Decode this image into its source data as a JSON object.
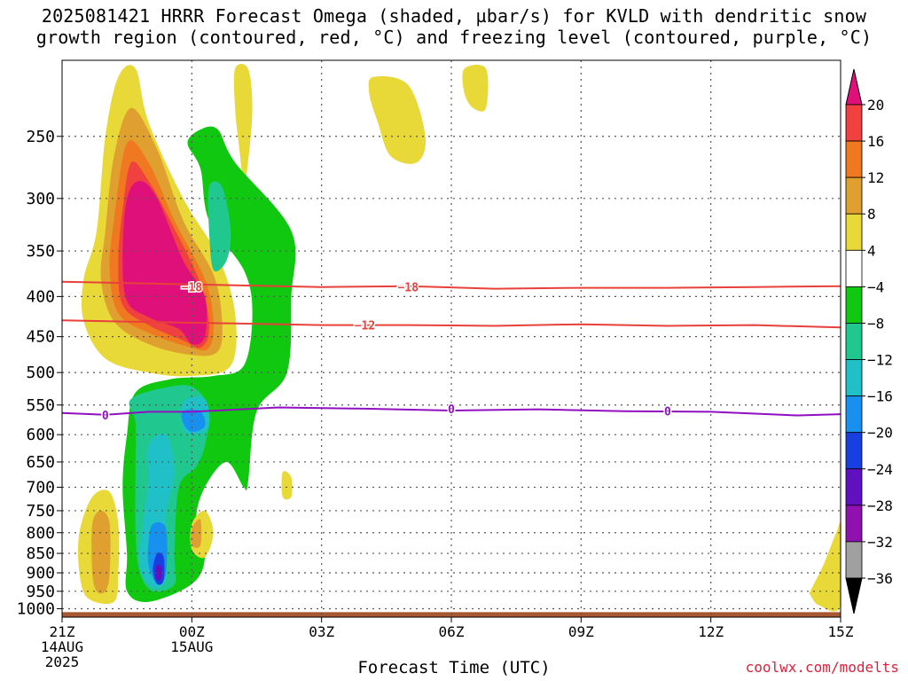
{
  "title_line1": "2025081421 HRRR Forecast Omega (shaded, µbar/s) for KVLD with dendritic snow",
  "title_line2": "growth region (contoured, red, °C) and freezing level (contoured, purple, °C)",
  "credit": "coolwx.com/modelts",
  "chart_data": {
    "type": "heatmap",
    "title": "2025081421 HRRR Forecast Omega (shaded, µbar/s) for KVLD with dendritic snow growth region (contoured, red, °C) and freezing level (contoured, purple, °C)",
    "xlabel": "Forecast Time (UTC)",
    "ylabel": "",
    "x_unit": "hours from 21Z 14AUG 2025",
    "xlim": [
      0,
      18
    ],
    "y_unit": "mb",
    "ylim": [
      1025,
      200
    ],
    "y_scale": "log",
    "grid": true,
    "x_ticks": [
      {
        "value": 0,
        "label": "21Z",
        "sub1": "14AUG",
        "sub2": "2025"
      },
      {
        "value": 3,
        "label": "00Z",
        "sub1": "15AUG",
        "sub2": ""
      },
      {
        "value": 6,
        "label": "03Z",
        "sub1": "",
        "sub2": ""
      },
      {
        "value": 9,
        "label": "06Z",
        "sub1": "",
        "sub2": ""
      },
      {
        "value": 12,
        "label": "09Z",
        "sub1": "",
        "sub2": ""
      },
      {
        "value": 15,
        "label": "12Z",
        "sub1": "",
        "sub2": ""
      },
      {
        "value": 18,
        "label": "15Z",
        "sub1": "",
        "sub2": ""
      }
    ],
    "y_ticks": [
      250,
      300,
      350,
      400,
      450,
      500,
      550,
      600,
      650,
      700,
      750,
      800,
      850,
      900,
      950,
      1000
    ],
    "colorbar": {
      "labels": [
        "20",
        "16",
        "12",
        "8",
        "4",
        "−4",
        "−8",
        "−12",
        "−16",
        "−20",
        "−24",
        "−28",
        "−32",
        "−36"
      ],
      "bins": [
        {
          "range": "> 20",
          "color": "#e0107a"
        },
        {
          "range": "16 to 20",
          "color": "#f04040"
        },
        {
          "range": "12 to 16",
          "color": "#f07820"
        },
        {
          "range": "8 to 12",
          "color": "#e0a030"
        },
        {
          "range": "4 to 8",
          "color": "#e8d838"
        },
        {
          "range": "-4 to 4",
          "color": "#ffffff"
        },
        {
          "range": "-8 to -4",
          "color": "#10c810"
        },
        {
          "range": "-12 to -8",
          "color": "#20c890"
        },
        {
          "range": "-16 to -12",
          "color": "#20c0c8"
        },
        {
          "range": "-20 to -16",
          "color": "#1890f0"
        },
        {
          "range": "-24 to -20",
          "color": "#1840e0"
        },
        {
          "range": "-28 to -24",
          "color": "#6010c0"
        },
        {
          "range": "-32 to -28",
          "color": "#9010b0"
        },
        {
          "range": "-36 to -32",
          "color": "#a0a0a0"
        },
        {
          "range": "< -36",
          "color": "#000000"
        }
      ]
    },
    "contours": [
      {
        "label": "-18",
        "color": "#e8403a",
        "points": [
          [
            0,
            383
          ],
          [
            2,
            385
          ],
          [
            4,
            387
          ],
          [
            6,
            389
          ],
          [
            8,
            388
          ],
          [
            10,
            391
          ],
          [
            12,
            390
          ],
          [
            14,
            390
          ],
          [
            16,
            389
          ],
          [
            18,
            388
          ]
        ],
        "label_at": [
          [
            3,
            389
          ],
          [
            8,
            389
          ]
        ]
      },
      {
        "label": "-12",
        "color": "#e8403a",
        "points": [
          [
            0,
            429
          ],
          [
            2,
            431
          ],
          [
            4,
            433
          ],
          [
            6,
            435
          ],
          [
            8,
            435
          ],
          [
            10,
            436
          ],
          [
            12,
            434
          ],
          [
            14,
            436
          ],
          [
            16,
            435
          ],
          [
            18,
            438
          ]
        ],
        "label_at": [
          [
            7,
            435
          ]
        ]
      },
      {
        "label": "0",
        "color": "#9010c0",
        "points": [
          [
            0,
            563
          ],
          [
            1,
            566
          ],
          [
            2,
            561
          ],
          [
            3,
            561
          ],
          [
            5,
            554
          ],
          [
            7,
            556
          ],
          [
            9,
            559
          ],
          [
            11,
            557
          ],
          [
            13,
            560
          ],
          [
            15,
            561
          ],
          [
            17,
            567
          ],
          [
            18,
            565
          ]
        ],
        "label_at": [
          [
            1,
            566
          ],
          [
            9,
            556
          ],
          [
            14,
            560
          ]
        ]
      }
    ],
    "terrain": {
      "color": "#a85830",
      "top_mb": 1010,
      "bottom_mb": 1025
    },
    "omega_regions": [
      {
        "bin": "4 to 8",
        "points": [
          [
            0.8,
            330
          ],
          [
            1.0,
            250
          ],
          [
            1.3,
            210
          ],
          [
            1.7,
            205
          ],
          [
            2.0,
            240
          ],
          [
            2.8,
            300
          ],
          [
            3.6,
            355
          ],
          [
            4.0,
            420
          ],
          [
            3.9,
            490
          ],
          [
            3.0,
            505
          ],
          [
            2.0,
            500
          ],
          [
            1.0,
            480
          ],
          [
            0.5,
            430
          ],
          [
            0.5,
            380
          ]
        ]
      },
      {
        "bin": "8 to 12",
        "points": [
          [
            1.0,
            330
          ],
          [
            1.2,
            265
          ],
          [
            1.6,
            230
          ],
          [
            2.2,
            260
          ],
          [
            2.8,
            320
          ],
          [
            3.5,
            375
          ],
          [
            3.7,
            430
          ],
          [
            3.6,
            470
          ],
          [
            3.0,
            475
          ],
          [
            2.0,
            460
          ],
          [
            1.2,
            430
          ],
          [
            0.9,
            380
          ]
        ]
      },
      {
        "bin": "12 to 16",
        "points": [
          [
            1.2,
            320
          ],
          [
            1.5,
            255
          ],
          [
            2.0,
            270
          ],
          [
            2.6,
            320
          ],
          [
            3.3,
            380
          ],
          [
            3.5,
            430
          ],
          [
            3.4,
            465
          ],
          [
            3.0,
            465
          ],
          [
            2.0,
            445
          ],
          [
            1.3,
            420
          ],
          [
            1.1,
            370
          ]
        ]
      },
      {
        "bin": "16 to 20",
        "points": [
          [
            1.4,
            310
          ],
          [
            1.6,
            270
          ],
          [
            2.0,
            285
          ],
          [
            2.5,
            320
          ],
          [
            3.2,
            385
          ],
          [
            3.4,
            440
          ],
          [
            3.2,
            465
          ],
          [
            2.8,
            455
          ],
          [
            2.0,
            435
          ],
          [
            1.4,
            410
          ],
          [
            1.3,
            360
          ]
        ]
      },
      {
        "bin": "> 20",
        "points": [
          [
            1.5,
            300
          ],
          [
            1.8,
            285
          ],
          [
            2.2,
            300
          ],
          [
            2.8,
            360
          ],
          [
            3.3,
            400
          ],
          [
            3.3,
            450
          ],
          [
            3.0,
            460
          ],
          [
            2.7,
            440
          ],
          [
            2.0,
            425
          ],
          [
            1.5,
            405
          ],
          [
            1.4,
            355
          ]
        ]
      },
      {
        "bin": "4 to 8",
        "points": [
          [
            4.0,
            205
          ],
          [
            4.3,
            205
          ],
          [
            4.4,
            230
          ],
          [
            4.3,
            270
          ],
          [
            4.2,
            285
          ],
          [
            4.1,
            260
          ],
          [
            4.0,
            230
          ]
        ]
      },
      {
        "bin": "4 to 8",
        "points": [
          [
            7.2,
            210
          ],
          [
            8.0,
            215
          ],
          [
            8.4,
            250
          ],
          [
            8.2,
            270
          ],
          [
            7.6,
            265
          ],
          [
            7.3,
            240
          ],
          [
            7.1,
            220
          ]
        ]
      },
      {
        "bin": "4 to 8",
        "points": [
          [
            9.3,
            205
          ],
          [
            9.8,
            205
          ],
          [
            9.8,
            230
          ],
          [
            9.5,
            230
          ],
          [
            9.3,
            220
          ]
        ]
      },
      {
        "bin": "-8 to -4",
        "points": [
          [
            2.9,
            255
          ],
          [
            3.2,
            275
          ],
          [
            3.4,
            320
          ],
          [
            4.2,
            370
          ],
          [
            4.4,
            420
          ],
          [
            4.2,
            490
          ],
          [
            3.5,
            505
          ],
          [
            2.5,
            510
          ],
          [
            1.7,
            530
          ],
          [
            1.5,
            600
          ],
          [
            1.4,
            700
          ],
          [
            1.5,
            850
          ],
          [
            1.5,
            950
          ],
          [
            2.0,
            980
          ],
          [
            3.0,
            930
          ],
          [
            3.3,
            860
          ],
          [
            3.1,
            770
          ],
          [
            3.3,
            700
          ],
          [
            3.8,
            650
          ],
          [
            4.2,
            700
          ],
          [
            4.3,
            690
          ],
          [
            4.5,
            560
          ],
          [
            5.2,
            500
          ],
          [
            5.3,
            400
          ],
          [
            5.3,
            330
          ],
          [
            4.0,
            270
          ],
          [
            3.6,
            245
          ],
          [
            3.2,
            245
          ]
        ]
      },
      {
        "bin": "-12 to -8",
        "points": [
          [
            1.6,
            540
          ],
          [
            2.6,
            520
          ],
          [
            3.1,
            525
          ],
          [
            3.4,
            560
          ],
          [
            3.3,
            620
          ],
          [
            3.1,
            660
          ],
          [
            2.7,
            700
          ],
          [
            2.6,
            850
          ],
          [
            2.6,
            930
          ],
          [
            2.1,
            950
          ],
          [
            1.8,
            900
          ],
          [
            1.7,
            800
          ],
          [
            1.7,
            650
          ],
          [
            1.7,
            580
          ]
        ]
      },
      {
        "bin": "-12 to -8",
        "points": [
          [
            3.4,
            290
          ],
          [
            3.7,
            290
          ],
          [
            3.9,
            330
          ],
          [
            3.8,
            360
          ],
          [
            3.5,
            370
          ],
          [
            3.4,
            330
          ]
        ]
      },
      {
        "bin": "-16 to -12",
        "points": [
          [
            2.0,
            620
          ],
          [
            2.4,
            600
          ],
          [
            2.6,
            670
          ],
          [
            2.4,
            760
          ],
          [
            2.4,
            850
          ],
          [
            2.4,
            920
          ],
          [
            2.1,
            940
          ],
          [
            1.8,
            880
          ],
          [
            1.9,
            760
          ],
          [
            2.0,
            690
          ]
        ]
      },
      {
        "bin": "-16 to -12",
        "points": [
          [
            2.8,
            545
          ],
          [
            3.3,
            540
          ],
          [
            3.4,
            585
          ],
          [
            3.1,
            600
          ],
          [
            2.8,
            590
          ]
        ]
      },
      {
        "bin": "-20 to -16",
        "points": [
          [
            2.8,
            560
          ],
          [
            3.2,
            560
          ],
          [
            3.3,
            585
          ],
          [
            3.0,
            595
          ],
          [
            2.8,
            580
          ]
        ]
      },
      {
        "bin": "-20 to -16",
        "points": [
          [
            2.1,
            780
          ],
          [
            2.4,
            790
          ],
          [
            2.4,
            900
          ],
          [
            2.2,
            930
          ],
          [
            2.0,
            880
          ],
          [
            2.0,
            820
          ]
        ]
      },
      {
        "bin": "-24 to -20",
        "points": [
          [
            2.2,
            850
          ],
          [
            2.35,
            860
          ],
          [
            2.35,
            920
          ],
          [
            2.2,
            930
          ],
          [
            2.1,
            890
          ]
        ]
      },
      {
        "bin": "-28 to -24",
        "points": [
          [
            2.2,
            880
          ],
          [
            2.3,
            885
          ],
          [
            2.3,
            915
          ],
          [
            2.2,
            920
          ],
          [
            2.15,
            900
          ]
        ]
      },
      {
        "bin": "4 to 8",
        "points": [
          [
            0.4,
            800
          ],
          [
            0.7,
            720
          ],
          [
            1.1,
            710
          ],
          [
            1.3,
            780
          ],
          [
            1.3,
            900
          ],
          [
            1.2,
            980
          ],
          [
            0.6,
            970
          ],
          [
            0.4,
            900
          ]
        ]
      },
      {
        "bin": "8 to 12",
        "points": [
          [
            0.7,
            780
          ],
          [
            0.9,
            750
          ],
          [
            1.1,
            780
          ],
          [
            1.1,
            900
          ],
          [
            1.0,
            950
          ],
          [
            0.8,
            950
          ],
          [
            0.7,
            900
          ]
        ]
      },
      {
        "bin": "4 to 8",
        "points": [
          [
            3.0,
            780
          ],
          [
            3.3,
            750
          ],
          [
            3.5,
            800
          ],
          [
            3.3,
            860
          ],
          [
            3.0,
            840
          ]
        ]
      },
      {
        "bin": "8 to 12",
        "points": [
          [
            3.0,
            790
          ],
          [
            3.2,
            770
          ],
          [
            3.2,
            830
          ],
          [
            3.0,
            830
          ]
        ]
      },
      {
        "bin": "4 to 8",
        "points": [
          [
            5.1,
            670
          ],
          [
            5.3,
            680
          ],
          [
            5.3,
            720
          ],
          [
            5.1,
            720
          ]
        ]
      },
      {
        "bin": "4 to 8",
        "points": [
          [
            17.3,
            950
          ],
          [
            17.6,
            880
          ],
          [
            17.9,
            800
          ],
          [
            18.0,
            790
          ],
          [
            18.0,
            990
          ],
          [
            17.5,
            990
          ],
          [
            17.3,
            960
          ]
        ]
      }
    ]
  }
}
